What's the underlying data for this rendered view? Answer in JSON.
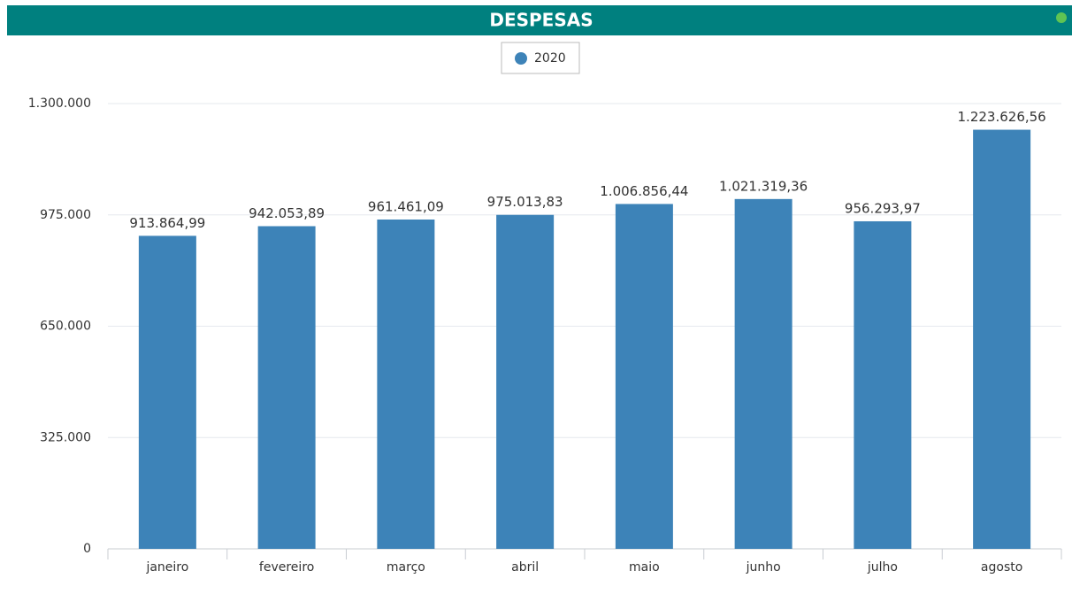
{
  "chart_data": {
    "type": "bar",
    "title": "DESPESAS",
    "categories": [
      "janeiro",
      "fevereiro",
      "março",
      "abril",
      "maio",
      "junho",
      "julho",
      "agosto"
    ],
    "series": [
      {
        "name": "2020",
        "color": "#3d83b8",
        "values": [
          913864.99,
          942053.89,
          961461.09,
          975013.83,
          1006856.44,
          1021319.36,
          956293.97,
          1223626.56
        ],
        "value_labels": [
          "913.864,99",
          "942.053,89",
          "961.461,09",
          "975.013,83",
          "1.006.856,44",
          "1.021.319,36",
          "956.293,97",
          "1.223.626,56"
        ]
      }
    ],
    "ylim": [
      0,
      1300000
    ],
    "yticks": [
      0,
      {
        "value": 325000,
        "label": "325.000"
      },
      {
        "value": 650000,
        "label": "650.000"
      },
      {
        "value": 975000,
        "label": "975.000"
      },
      {
        "value": 1300000,
        "label": "1.300.000"
      }
    ],
    "grid": true,
    "legend": "top"
  }
}
